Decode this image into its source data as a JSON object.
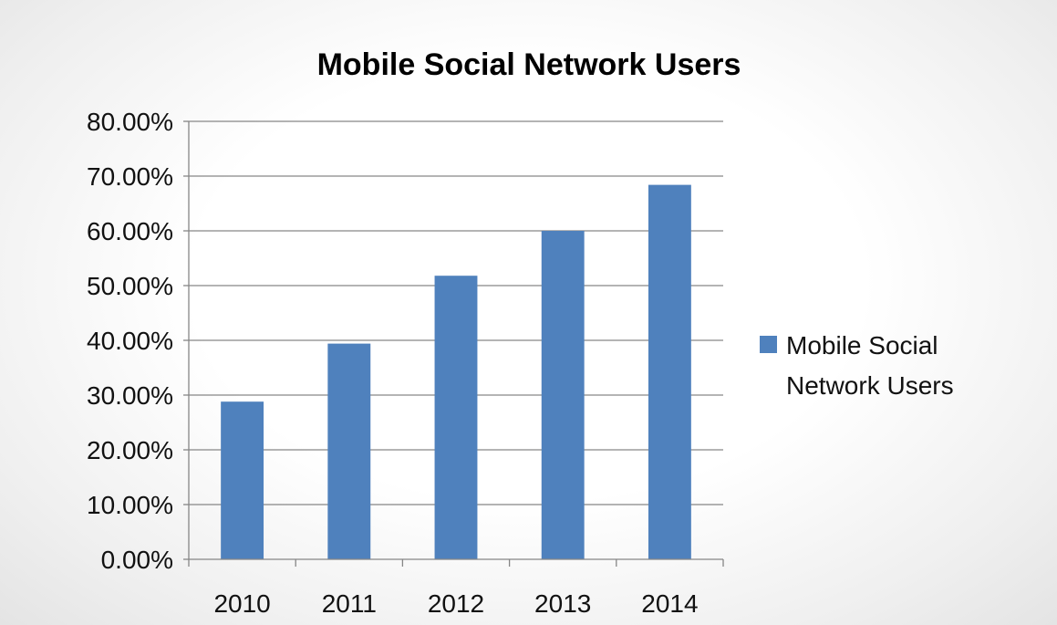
{
  "chart_data": {
    "type": "bar",
    "title": "Mobile Social Network Users",
    "xlabel": "",
    "ylabel": "",
    "categories": [
      "2010",
      "2011",
      "2012",
      "2013",
      "2014"
    ],
    "series": [
      {
        "name": "Mobile Social Network Users",
        "values": [
          0.288,
          0.394,
          0.518,
          0.6,
          0.684
        ]
      }
    ],
    "ylim": [
      0,
      0.8
    ],
    "yticks": [
      0,
      0.1,
      0.2,
      0.3,
      0.4,
      0.5,
      0.6,
      0.7,
      0.8
    ],
    "ytick_labels": [
      "0.00%",
      "10.00%",
      "20.00%",
      "30.00%",
      "40.00%",
      "50.00%",
      "60.00%",
      "70.00%",
      "80.00%"
    ],
    "grid": "horizontal",
    "legend": {
      "position": "right",
      "lines": [
        "Mobile Social",
        "Network Users"
      ]
    },
    "colors": {
      "bar": "#4f81bd",
      "grid": "#868686",
      "axis": "#868686"
    }
  }
}
